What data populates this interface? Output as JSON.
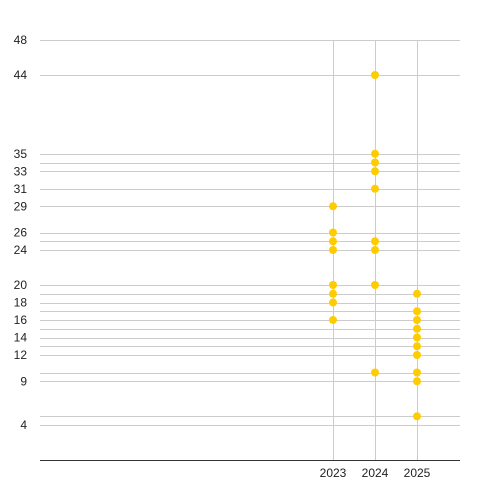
{
  "chart_data": {
    "type": "scatter",
    "title": "",
    "xlabel": "",
    "ylabel": "",
    "ylim": [
      0,
      48
    ],
    "x_ticks": [
      "2023",
      "2024",
      "2025"
    ],
    "y_ticks": [
      "4",
      "9",
      "12",
      "14",
      "16",
      "18",
      "20",
      "24",
      "26",
      "29",
      "31",
      "33",
      "35",
      "44",
      "48"
    ],
    "grid": {
      "horizontal": [
        4,
        5,
        9,
        10,
        12,
        13,
        14,
        15,
        16,
        17,
        18,
        19,
        20,
        24,
        25,
        26,
        29,
        31,
        33,
        34,
        35,
        44,
        48
      ],
      "vertical": [
        "2023",
        "2024",
        "2025"
      ]
    },
    "points": [
      {
        "x": "2023",
        "y": 29
      },
      {
        "x": "2023",
        "y": 26
      },
      {
        "x": "2023",
        "y": 25
      },
      {
        "x": "2023",
        "y": 24
      },
      {
        "x": "2023",
        "y": 20
      },
      {
        "x": "2023",
        "y": 19
      },
      {
        "x": "2023",
        "y": 18
      },
      {
        "x": "2023",
        "y": 16
      },
      {
        "x": "2024",
        "y": 44
      },
      {
        "x": "2024",
        "y": 35
      },
      {
        "x": "2024",
        "y": 34
      },
      {
        "x": "2024",
        "y": 33
      },
      {
        "x": "2024",
        "y": 31
      },
      {
        "x": "2024",
        "y": 25
      },
      {
        "x": "2024",
        "y": 24
      },
      {
        "x": "2024",
        "y": 20
      },
      {
        "x": "2024",
        "y": 10
      },
      {
        "x": "2025",
        "y": 19
      },
      {
        "x": "2025",
        "y": 17
      },
      {
        "x": "2025",
        "y": 16
      },
      {
        "x": "2025",
        "y": 15
      },
      {
        "x": "2025",
        "y": 14
      },
      {
        "x": "2025",
        "y": 13
      },
      {
        "x": "2025",
        "y": 12
      },
      {
        "x": "2025",
        "y": 10
      },
      {
        "x": "2025",
        "y": 9
      },
      {
        "x": "2025",
        "y": 5
      }
    ],
    "marker_color": "#FFCC00",
    "grid_color": "#CCCCCC"
  }
}
